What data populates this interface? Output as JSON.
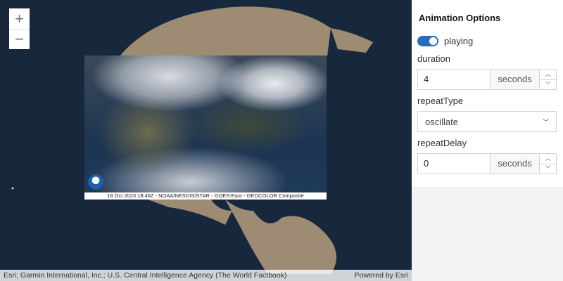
{
  "map": {
    "zoom_in": "+",
    "zoom_out": "−",
    "satellite_caption": "18 Oct 2023 18:46Z - NOAA/NESDIS/STAR - GOES-East - GEOCOLOR Composite",
    "attribution": "Esri; Garmin International, Inc.; U.S. Central Intelligence Agency (The World Factbook)",
    "powered_by": "Powered by Esri",
    "colors": {
      "ocean": "#18283c",
      "land": "#9e8b73"
    }
  },
  "panel": {
    "title": "Animation Options",
    "playing_label": "playing",
    "playing": true,
    "duration": {
      "label": "duration",
      "value": "4",
      "unit": "seconds"
    },
    "repeatType": {
      "label": "repeatType",
      "value": "oscillate"
    },
    "repeatDelay": {
      "label": "repeatDelay",
      "value": "0",
      "unit": "seconds"
    }
  }
}
